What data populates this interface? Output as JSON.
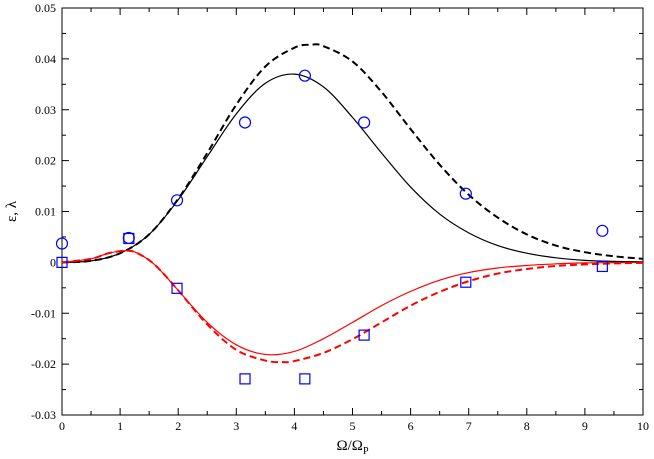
{
  "chart_data": {
    "type": "line",
    "title": "",
    "xlabel": "Ω/Ω",
    "xlabel_sub": "P",
    "ylabel": "ε, λ",
    "xlim": [
      0,
      10
    ],
    "ylim": [
      -0.03,
      0.05
    ],
    "xticks": [
      0,
      1,
      2,
      3,
      4,
      5,
      6,
      7,
      8,
      9,
      10
    ],
    "xtick_labels": [
      "0",
      "1",
      "2",
      "3",
      "4",
      "5",
      "6",
      "7",
      "8",
      "9",
      "10"
    ],
    "yticks": [
      -0.03,
      -0.02,
      -0.01,
      0,
      0.01,
      0.02,
      0.03,
      0.04,
      0.05
    ],
    "ytick_labels": [
      "-0.03",
      "-0.02",
      "-0.01",
      "0",
      "0.01",
      "0.02",
      "0.03",
      "0.04",
      "0.05"
    ],
    "grid": false,
    "legend": "none",
    "series": [
      {
        "kind": "line",
        "style": "dashed",
        "color": "#000000",
        "x": [
          0,
          0.5,
          1.0,
          1.5,
          2.0,
          2.5,
          3.0,
          3.5,
          4.0,
          4.3,
          4.5,
          5.0,
          5.5,
          6.0,
          6.5,
          7.0,
          7.5,
          8.0,
          8.5,
          9.0,
          9.5,
          10.0
        ],
        "y": [
          0,
          0.0003,
          0.0018,
          0.0055,
          0.0125,
          0.0215,
          0.031,
          0.0385,
          0.0422,
          0.0428,
          0.0425,
          0.0395,
          0.0335,
          0.0262,
          0.0192,
          0.0133,
          0.0088,
          0.0055,
          0.0033,
          0.002,
          0.0012,
          0.0007
        ]
      },
      {
        "kind": "line",
        "style": "solid",
        "color": "#000000",
        "x": [
          0,
          0.5,
          1.0,
          1.5,
          2.0,
          2.5,
          3.0,
          3.5,
          4.0,
          4.5,
          5.0,
          5.5,
          6.0,
          6.5,
          7.0,
          7.5,
          8.0,
          8.5,
          9.0,
          9.5,
          10.0
        ],
        "y": [
          0,
          0.0003,
          0.0018,
          0.0055,
          0.0123,
          0.0208,
          0.0292,
          0.0352,
          0.037,
          0.0345,
          0.0285,
          0.0215,
          0.0148,
          0.0095,
          0.0058,
          0.0033,
          0.0018,
          0.0009,
          0.0004,
          0.0002,
          0.0001
        ]
      },
      {
        "kind": "line",
        "style": "solid",
        "color": "#ff0000",
        "x": [
          0,
          0.5,
          0.8,
          1.1,
          1.3,
          1.6,
          2.0,
          2.5,
          3.0,
          3.5,
          4.0,
          4.5,
          5.0,
          5.5,
          6.0,
          6.5,
          7.0,
          7.5,
          8.0,
          8.5,
          9.0,
          9.5,
          10.0
        ],
        "y": [
          0,
          0.0007,
          0.0018,
          0.0023,
          0.0018,
          -0.0005,
          -0.0055,
          -0.0118,
          -0.0162,
          -0.0181,
          -0.0175,
          -0.015,
          -0.0118,
          -0.0085,
          -0.0057,
          -0.0035,
          -0.002,
          -0.0011,
          -0.0006,
          -0.0003,
          -0.0001,
          -5e-05,
          0
        ]
      },
      {
        "kind": "line",
        "style": "dashed",
        "color": "#ff0000",
        "x": [
          0,
          0.5,
          0.8,
          1.1,
          1.3,
          1.6,
          2.0,
          2.5,
          3.0,
          3.5,
          3.8,
          4.0,
          4.5,
          5.0,
          5.5,
          6.0,
          6.5,
          7.0,
          7.5,
          8.0,
          8.5,
          9.0,
          9.5,
          10.0
        ],
        "y": [
          0,
          0.0007,
          0.0018,
          0.0023,
          0.0018,
          -0.0005,
          -0.0055,
          -0.0122,
          -0.0172,
          -0.0193,
          -0.0196,
          -0.0194,
          -0.0178,
          -0.0151,
          -0.0118,
          -0.0085,
          -0.0058,
          -0.0037,
          -0.0022,
          -0.0013,
          -0.0007,
          -0.0004,
          -0.0002,
          -0.0001
        ]
      },
      {
        "kind": "scatter",
        "marker": "circle",
        "color": "#0000ff",
        "x": [
          0,
          1.15,
          1.98,
          3.15,
          4.18,
          5.2,
          6.95,
          9.3
        ],
        "y": [
          0.0037,
          0.0048,
          0.0122,
          0.0275,
          0.0367,
          0.0275,
          0.0135,
          0.0062
        ]
      },
      {
        "kind": "scatter",
        "marker": "square",
        "color": "#0000ff",
        "x": [
          0,
          1.15,
          1.98,
          3.15,
          4.18,
          5.2,
          6.95,
          9.3
        ],
        "y": [
          0,
          0.0047,
          -0.0051,
          -0.0229,
          -0.0229,
          -0.0143,
          -0.0039,
          -0.0008
        ]
      }
    ]
  }
}
